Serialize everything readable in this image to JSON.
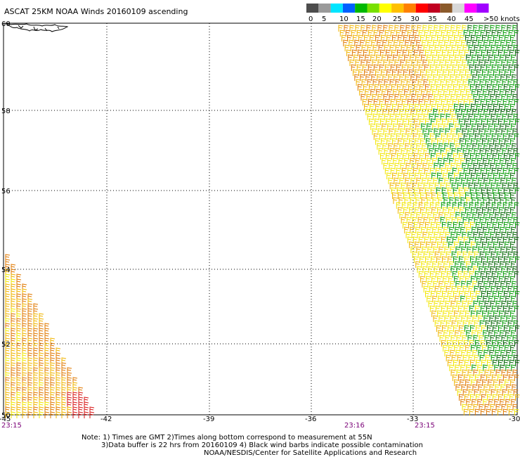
{
  "title": "ASCAT 25KM NOAA Winds 20160109 ascending",
  "legend": {
    "labels": [
      "0",
      "5",
      "10",
      "15",
      "20",
      "25",
      "30",
      "35",
      "40",
      "45",
      ">50 knots"
    ],
    "colors": [
      "#4d4d4d",
      "#9a9a9a",
      "#00e5ff",
      "#0060ff",
      "#00b800",
      "#78e000",
      "#ffff00",
      "#ffc000",
      "#ff8000",
      "#ff0000",
      "#c00020",
      "#8b5a2b",
      "#d8d8d8",
      "#ff00ff",
      "#a000ff"
    ]
  },
  "axes": {
    "x_ticks": [
      "-45",
      "-42",
      "-39",
      "-36",
      "-33",
      "-30"
    ],
    "y_ticks": [
      "60",
      "58",
      "56",
      "54",
      "52",
      "50"
    ]
  },
  "times": [
    "23:15",
    "23:16",
    "23:15"
  ],
  "notes": [
    "Note: 1) Times are GMT 2)Times along bottom correspond to measurement at 55N",
    "3)Data buffer is 22 hrs from 20160109 4) Black wind barbs indicate possible contamination",
    "NOAA/NESDIS/Center for Satellite Applications and Research"
  ],
  "colors": {
    "barb_yellow": "#f2e600",
    "barb_gold": "#f0b400",
    "barb_orange": "#e07800",
    "barb_red": "#d81818",
    "barb_green": "#009a00",
    "barb_darkgreen": "#006400",
    "time_label": "#7a0077"
  }
}
